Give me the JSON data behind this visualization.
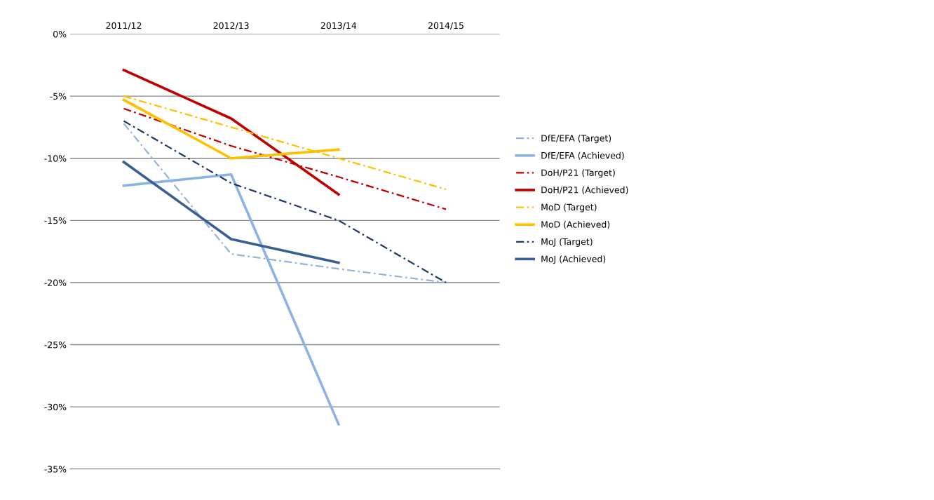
{
  "chart_data": {
    "type": "line",
    "categories": [
      "2011/12",
      "2012/13",
      "2013/14",
      "2014/15"
    ],
    "series": [
      {
        "name": "DfE/EFA (Target)",
        "color": "#95b3d7",
        "line_style": "dashed",
        "values": [
          -7.2,
          -17.7,
          -18.9,
          -20
        ]
      },
      {
        "name": "DfE/EFA (Achieved)",
        "color": "#8db3e2",
        "line_style": "solid",
        "values": [
          -12.2,
          -11.3,
          -31.4,
          null
        ]
      },
      {
        "name": "DoH/P21 (Target)",
        "color": "#c00000",
        "line_style": "dashed",
        "values": [
          -6,
          -9,
          -11.5,
          -14.1
        ]
      },
      {
        "name": "DoH/P21 (Achieved)",
        "color": "#c00000",
        "line_style": "solid",
        "values": [
          -2.9,
          -6.8,
          -12.9,
          null
        ]
      },
      {
        "name": "MoD (Target)",
        "color": "#ffc000",
        "line_style": "dashed",
        "values": [
          -5,
          -7.5,
          -10,
          -12.5
        ]
      },
      {
        "name": "MoD (Achieved)",
        "color": "#ffc000",
        "line_style": "solid",
        "values": [
          -5.3,
          -10,
          -9.3,
          null
        ]
      },
      {
        "name": "MoJ (Target)",
        "color": "#1f3864",
        "line_style": "dashed",
        "values": [
          -7,
          -12,
          -15,
          -20
        ]
      },
      {
        "name": "MoJ (Achieved)",
        "color": "#3a5f91",
        "line_style": "solid",
        "values": [
          -10.3,
          -16.5,
          -18.4,
          null
        ]
      }
    ],
    "ylim": [
      -35,
      0
    ],
    "yticks": [
      {
        "value": 0,
        "label": "0%"
      },
      {
        "value": -5,
        "label": "-5%"
      },
      {
        "value": -10,
        "label": "-10%"
      },
      {
        "value": -15,
        "label": "-15%"
      },
      {
        "value": -20,
        "label": "-20%"
      },
      {
        "value": -25,
        "label": "-25%"
      },
      {
        "value": -30,
        "label": "-30%"
      },
      {
        "value": -35,
        "label": "-35%"
      }
    ],
    "grid": "y",
    "legend": "right",
    "marker": "none"
  }
}
